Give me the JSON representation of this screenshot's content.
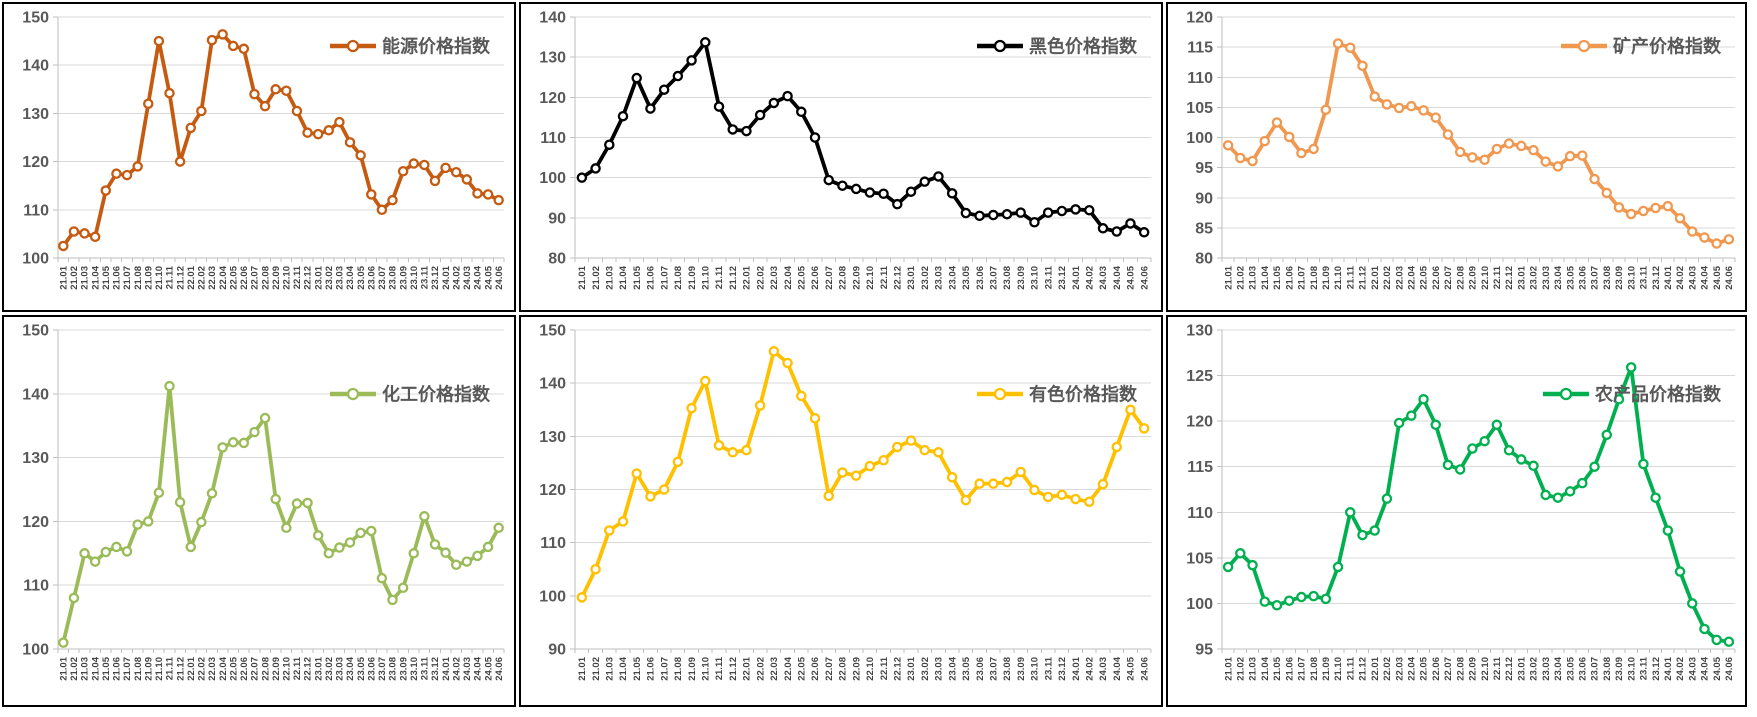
{
  "page": {
    "background": "#ffffff",
    "layout": "2x3 grid of line charts"
  },
  "categories": [
    "21.01",
    "21.02",
    "21.03",
    "21.04",
    "21.05",
    "21.06",
    "21.07",
    "21.08",
    "21.09",
    "21.10",
    "21.11",
    "21.12",
    "22.01",
    "22.02",
    "22.03",
    "22.04",
    "22.05",
    "22.06",
    "22.07",
    "22.08",
    "22.09",
    "22.10",
    "22.11",
    "22.12",
    "23.01",
    "23.02",
    "23.03",
    "23.04",
    "23.05",
    "23.06",
    "23.07",
    "23.08",
    "23.09",
    "23.10",
    "23.11",
    "23.12",
    "24.01",
    "24.02",
    "24.03",
    "24.04",
    "24.05",
    "24.06"
  ],
  "chart_data": [
    {
      "type": "line",
      "id": "energy",
      "legend": "能源价格指数",
      "color": "#C55A11",
      "ylim": [
        100,
        150
      ],
      "ystep": 10,
      "y_ticks": [
        100,
        110,
        120,
        130,
        140,
        150
      ],
      "grid": true,
      "legend_position": "top-right",
      "marker": "open-circle",
      "values": [
        102.5,
        105.5,
        105.1,
        104.4,
        114,
        117.5,
        117.2,
        119,
        132,
        145,
        134.2,
        120,
        127,
        130.5,
        145.2,
        146.4,
        144,
        143.4,
        134,
        131.5,
        135,
        134.7,
        130.5,
        126,
        125.7,
        126.5,
        128.2,
        124,
        121.3,
        113.2,
        110,
        112,
        118,
        119.6,
        119.3,
        116,
        118.7,
        117.8,
        116.3,
        113.4,
        113.2,
        112
      ]
    },
    {
      "type": "line",
      "id": "black",
      "legend": "黑色价格指数",
      "color": "#000000",
      "ylim": [
        80,
        140
      ],
      "ystep": 10,
      "y_ticks": [
        80,
        90,
        100,
        110,
        120,
        130,
        140
      ],
      "grid": true,
      "legend_position": "top-right",
      "marker": "open-circle",
      "values": [
        100,
        102.3,
        108.2,
        115.3,
        124.8,
        117.2,
        121.9,
        125.3,
        129.2,
        133.7,
        117.7,
        112,
        111.6,
        115.6,
        118.6,
        120.3,
        116.4,
        110,
        99.4,
        98,
        97.2,
        96.3,
        96,
        93.4,
        96.5,
        99,
        100.3,
        96.1,
        91.2,
        90.5,
        90.7,
        90.9,
        91.3,
        88.9,
        91.3,
        91.7,
        92.1,
        91.9,
        87.4,
        86.6,
        88.6,
        86.4
      ]
    },
    {
      "type": "line",
      "id": "mineral",
      "legend": "矿产价格指数",
      "color": "#F09850",
      "ylim": [
        80,
        120
      ],
      "ystep": 5,
      "y_ticks": [
        80,
        85,
        90,
        95,
        100,
        105,
        110,
        115,
        120
      ],
      "grid": true,
      "legend_position": "top-right",
      "marker": "open-circle",
      "values": [
        98.7,
        96.6,
        96.1,
        99.4,
        102.5,
        100.1,
        97.4,
        98.1,
        104.6,
        115.6,
        114.9,
        111.9,
        106.8,
        105.5,
        104.9,
        105.2,
        104.5,
        103.3,
        100.5,
        97.6,
        96.7,
        96.3,
        98.1,
        99,
        98.6,
        97.9,
        96,
        95.2,
        96.9,
        97,
        93.1,
        90.8,
        88.4,
        87.3,
        87.8,
        88.3,
        88.6,
        86.6,
        84.4,
        83.4,
        82.4,
        83.1
      ]
    },
    {
      "type": "line",
      "id": "chemical",
      "legend": "化工价格指数",
      "color": "#9BBB59",
      "ylim": [
        100,
        150
      ],
      "ystep": 10,
      "y_ticks": [
        100,
        110,
        120,
        130,
        140,
        150
      ],
      "grid": true,
      "legend_position": "top-right",
      "marker": "open-circle",
      "values": [
        101,
        108,
        115,
        113.7,
        115.2,
        116,
        115.3,
        119.5,
        120,
        124.5,
        141.2,
        123,
        116,
        119.9,
        124.4,
        131.6,
        132.4,
        132.3,
        134,
        136.2,
        123.5,
        119,
        122.8,
        122.9,
        117.8,
        115,
        115.9,
        116.7,
        118.2,
        118.5,
        111.1,
        107.7,
        109.6,
        115,
        120.8,
        116.4,
        115.1,
        113.2,
        113.7,
        114.6,
        116,
        119
      ]
    },
    {
      "type": "line",
      "id": "nonferrous",
      "legend": "有色价格指数",
      "color": "#FFC000",
      "ylim": [
        90,
        150
      ],
      "ystep": 10,
      "y_ticks": [
        90,
        100,
        110,
        120,
        130,
        140,
        150
      ],
      "grid": true,
      "legend_position": "top-right",
      "marker": "open-circle",
      "values": [
        99.7,
        105,
        112.3,
        114,
        123,
        118.7,
        120,
        125.2,
        135.3,
        140.4,
        128.3,
        127,
        127.4,
        135.8,
        146,
        143.8,
        137.6,
        133.4,
        118.8,
        123.2,
        122.6,
        124.4,
        125.5,
        128,
        129.2,
        127.4,
        127,
        122.3,
        118,
        121.1,
        121.1,
        121.4,
        123.3,
        119.9,
        118.6,
        119,
        118.2,
        117.7,
        121,
        128,
        135,
        131.5
      ]
    },
    {
      "type": "line",
      "id": "agricultural",
      "legend": "农产品价格指数",
      "color": "#00B050",
      "ylim": [
        95,
        130
      ],
      "ystep": 5,
      "y_ticks": [
        95,
        100,
        105,
        110,
        115,
        120,
        125,
        130
      ],
      "grid": true,
      "legend_position": "top-right",
      "marker": "open-circle",
      "values": [
        104,
        105.5,
        104.2,
        100.2,
        99.8,
        100.3,
        100.7,
        100.8,
        100.5,
        104,
        110,
        107.5,
        108,
        111.5,
        119.8,
        120.6,
        122.4,
        119.6,
        115.2,
        114.7,
        117,
        117.8,
        119.6,
        116.8,
        115.8,
        115.1,
        111.9,
        111.6,
        112.3,
        113.2,
        115,
        118.5,
        122.4,
        125.9,
        115.3,
        111.6,
        108,
        103.5,
        100,
        97.2,
        96,
        95.8
      ]
    }
  ]
}
